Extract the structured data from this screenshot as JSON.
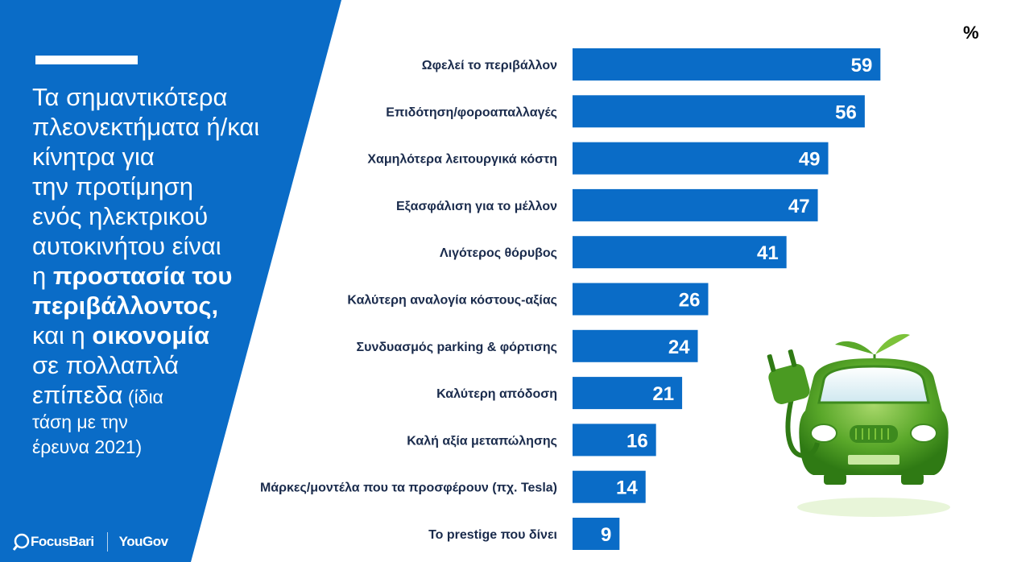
{
  "headline": {
    "l1": "Τα σημαντικότερα",
    "l2": "πλεονεκτήματα ή/και",
    "l3": "κίνητρα για",
    "l4": "την προτίμηση",
    "l5": "ενός ηλεκτρικού",
    "l6": "αυτοκινήτου είναι",
    "l7_pre": "η ",
    "l7_bold": "προστασία του",
    "l8_bold": "περιβάλλοντος,",
    "l9_pre": "και η ",
    "l9_bold": "οικονομία",
    "l10": "σε πολλαπλά",
    "l11": "επίπεδα",
    "l11_small": " (ίδια",
    "l12": "τάση με την",
    "l13": "έρευνα 2021)"
  },
  "brand": {
    "left": "FocusBari",
    "right": "YouGov"
  },
  "colors": {
    "panel_blue": "#0a6cc7",
    "bar_blue": "#0a6cc7",
    "label_navy": "#1a2b4c"
  },
  "chart_data": {
    "type": "bar",
    "orientation": "horizontal",
    "unit_label": "%",
    "categories": [
      "Ωφελεί το περιβάλλον",
      "Επιδότηση/φοροαπαλλαγές",
      "Χαμηλότερα λειτουργικά κόστη",
      "Εξασφάλιση για το μέλλον",
      "Λιγότερος θόρυβος",
      "Καλύτερη αναλογία κόστους-αξίας",
      "Συνδυασμός parking & φόρτισης",
      "Καλύτερη απόδοση",
      "Καλή αξία μεταπώλησης",
      "Μάρκες/μοντέλα που τα προσφέρουν (πχ. Tesla)",
      "Το prestige που δίνει"
    ],
    "values": [
      59,
      56,
      49,
      47,
      41,
      26,
      24,
      21,
      16,
      14,
      9
    ],
    "xlim": [
      0,
      100
    ]
  },
  "illustration": {
    "subject": "green electric car with plug and leaves"
  }
}
